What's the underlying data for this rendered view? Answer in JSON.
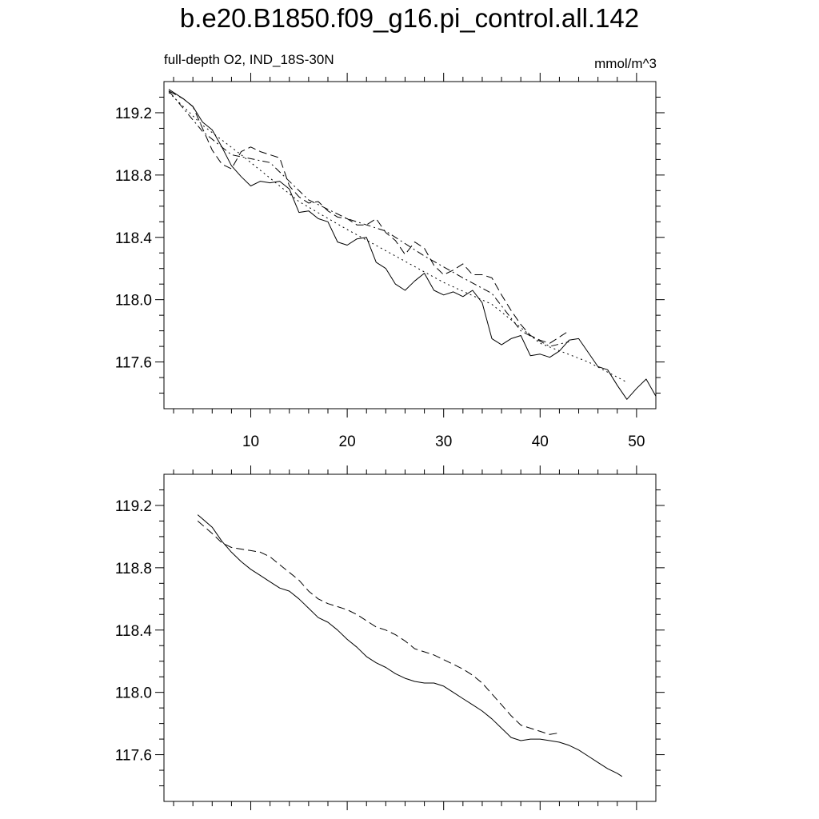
{
  "title": "b.e20.B1850.f09_g16.pi_control.all.142",
  "subtitle_left": "full-depth O2, IND_18S-30N",
  "subtitle_right": "mmol/m^3",
  "chart_data": [
    {
      "type": "line",
      "panel": "top",
      "xlim": [
        1,
        52
      ],
      "ylim": [
        117.3,
        119.4
      ],
      "x_ticks": [
        10,
        20,
        30,
        40,
        50
      ],
      "y_ticks": [
        117.6,
        118.0,
        118.4,
        118.8,
        119.2
      ],
      "y_tick_labels": [
        "117.6",
        "118.0",
        "118.4",
        "118.8",
        "119.2"
      ],
      "x_tick_labels": [
        "10",
        "20",
        "30",
        "40",
        "50"
      ],
      "show_x_labels": true,
      "series": [
        {
          "style": "solid",
          "x": [
            1.5,
            3,
            4,
            5,
            6,
            7,
            8,
            9,
            10,
            11,
            12,
            13,
            14,
            15,
            16,
            17,
            18,
            19,
            20,
            21,
            22,
            23,
            24,
            25,
            26,
            27,
            28,
            29,
            30,
            31,
            32,
            33,
            34,
            35,
            36,
            37,
            38,
            39,
            40,
            41,
            42,
            43,
            44,
            45,
            46,
            47,
            48,
            49,
            50,
            51,
            52
          ],
          "values": [
            119.35,
            119.29,
            119.24,
            119.14,
            119.09,
            118.98,
            118.86,
            118.79,
            118.73,
            118.76,
            118.75,
            118.76,
            118.71,
            118.56,
            118.57,
            118.52,
            118.5,
            118.37,
            118.35,
            118.39,
            118.4,
            118.24,
            118.2,
            118.1,
            118.06,
            118.12,
            118.17,
            118.06,
            118.03,
            118.05,
            118.02,
            118.06,
            117.98,
            117.75,
            117.71,
            117.75,
            117.77,
            117.64,
            117.65,
            117.63,
            117.67,
            117.74,
            117.75,
            117.66,
            117.57,
            117.55,
            117.45,
            117.36,
            117.43,
            117.49,
            117.38
          ]
        },
        {
          "style": "dashed",
          "x": [
            1.5,
            3,
            4,
            5,
            6,
            7,
            8,
            9,
            10,
            11,
            12,
            13,
            14,
            15,
            16,
            17,
            18,
            19,
            20,
            21,
            22,
            23,
            24,
            25,
            26,
            27,
            28,
            29,
            30,
            31,
            32,
            33,
            34,
            35,
            36,
            37,
            38,
            39,
            40,
            41,
            42,
            43
          ],
          "values": [
            119.34,
            119.29,
            119.24,
            119.1,
            118.96,
            118.87,
            118.84,
            118.95,
            118.98,
            118.95,
            118.93,
            118.91,
            118.73,
            118.66,
            118.62,
            118.63,
            118.57,
            118.53,
            118.52,
            118.48,
            118.48,
            118.52,
            118.43,
            118.38,
            118.29,
            118.37,
            118.33,
            118.22,
            118.16,
            118.19,
            118.23,
            118.16,
            118.16,
            118.14,
            118.03,
            117.93,
            117.84,
            117.77,
            117.74,
            117.72,
            117.76,
            117.8
          ]
        },
        {
          "style": "dotted",
          "x": [
            1.5,
            5,
            9,
            15,
            20,
            25,
            30,
            35,
            40,
            45,
            49
          ],
          "values": [
            119.33,
            119.12,
            118.93,
            118.63,
            118.45,
            118.28,
            118.11,
            117.97,
            117.72,
            117.6,
            117.47
          ]
        },
        {
          "style": "dash-dot",
          "x": [
            1.5,
            5,
            8,
            12,
            16,
            20,
            24,
            28,
            32,
            35,
            38,
            41,
            43
          ],
          "values": [
            119.34,
            119.08,
            118.93,
            118.88,
            118.64,
            118.52,
            118.44,
            118.28,
            118.14,
            118.04,
            117.8,
            117.7,
            117.73
          ]
        }
      ]
    },
    {
      "type": "line",
      "panel": "bottom",
      "xlim": [
        1,
        52
      ],
      "ylim": [
        117.3,
        119.4
      ],
      "x_ticks": [
        10,
        20,
        30,
        40,
        50
      ],
      "y_ticks": [
        117.6,
        118.0,
        118.4,
        118.8,
        119.2
      ],
      "y_tick_labels": [
        "117.6",
        "118.0",
        "118.4",
        "118.8",
        "119.2"
      ],
      "show_x_labels": false,
      "series": [
        {
          "style": "solid",
          "x": [
            4.5,
            6,
            7,
            8,
            9,
            10,
            11,
            12,
            13,
            14,
            15,
            16,
            17,
            18,
            19,
            20,
            21,
            22,
            23,
            24,
            25,
            26,
            27,
            28,
            29,
            30,
            31,
            32,
            33,
            34,
            35,
            36,
            37,
            38,
            39,
            40,
            41,
            42,
            43,
            44,
            45,
            46,
            47,
            48,
            48.5
          ],
          "values": [
            119.14,
            119.06,
            118.97,
            118.9,
            118.84,
            118.79,
            118.75,
            118.71,
            118.67,
            118.65,
            118.6,
            118.54,
            118.48,
            118.45,
            118.4,
            118.34,
            118.29,
            118.23,
            118.19,
            118.16,
            118.12,
            118.09,
            118.07,
            118.06,
            118.06,
            118.04,
            118.0,
            117.96,
            117.92,
            117.88,
            117.83,
            117.77,
            117.71,
            117.69,
            117.7,
            117.7,
            117.69,
            117.68,
            117.66,
            117.63,
            117.59,
            117.55,
            117.51,
            117.48,
            117.46
          ]
        },
        {
          "style": "dashed",
          "x": [
            4.5,
            6,
            7,
            8,
            9,
            10,
            11,
            12,
            13,
            14,
            15,
            16,
            17,
            18,
            19,
            20,
            21,
            22,
            23,
            24,
            25,
            26,
            27,
            28,
            29,
            30,
            31,
            32,
            33,
            34,
            35,
            36,
            37,
            38,
            39,
            40,
            41,
            42
          ],
          "values": [
            119.1,
            119.02,
            118.96,
            118.93,
            118.92,
            118.91,
            118.9,
            118.87,
            118.82,
            118.77,
            118.72,
            118.65,
            118.6,
            118.57,
            118.55,
            118.53,
            118.5,
            118.46,
            118.42,
            118.4,
            118.37,
            118.33,
            118.28,
            118.26,
            118.24,
            118.21,
            118.18,
            118.15,
            118.11,
            118.06,
            117.99,
            117.92,
            117.85,
            117.79,
            117.77,
            117.75,
            117.73,
            117.74
          ]
        }
      ]
    }
  ]
}
